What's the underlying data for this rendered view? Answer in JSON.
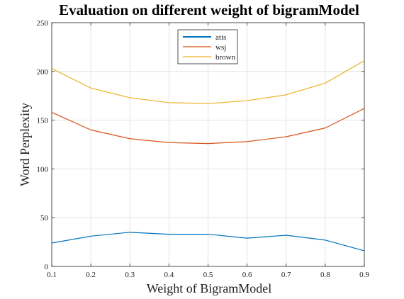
{
  "chart_data": {
    "type": "line",
    "title": "Evaluation on different weight of bigramModel",
    "xlabel": "Weight of BigramModel",
    "ylabel": "Word Perplexity",
    "x": [
      0.1,
      0.2,
      0.3,
      0.4,
      0.5,
      0.6,
      0.7,
      0.8,
      0.9
    ],
    "xlim": [
      0.1,
      0.9
    ],
    "ylim": [
      0,
      250
    ],
    "xticks": [
      "0.1",
      "0.2",
      "0.3",
      "0.4",
      "0.5",
      "0.6",
      "0.7",
      "0.8",
      "0.9"
    ],
    "yticks": [
      "0",
      "50",
      "100",
      "150",
      "200",
      "250"
    ],
    "grid": true,
    "legend_position": "top-center",
    "series": [
      {
        "name": "atis",
        "color": "#0072bd",
        "values": [
          24,
          31,
          35,
          33,
          33,
          29,
          32,
          27,
          16
        ]
      },
      {
        "name": "wsj",
        "color": "#d95319",
        "values": [
          158,
          140,
          131,
          127,
          126,
          128,
          133,
          142,
          162
        ]
      },
      {
        "name": "brown",
        "color": "#edb120",
        "values": [
          203,
          183,
          173,
          168,
          167,
          170,
          176,
          188,
          211
        ]
      }
    ]
  }
}
